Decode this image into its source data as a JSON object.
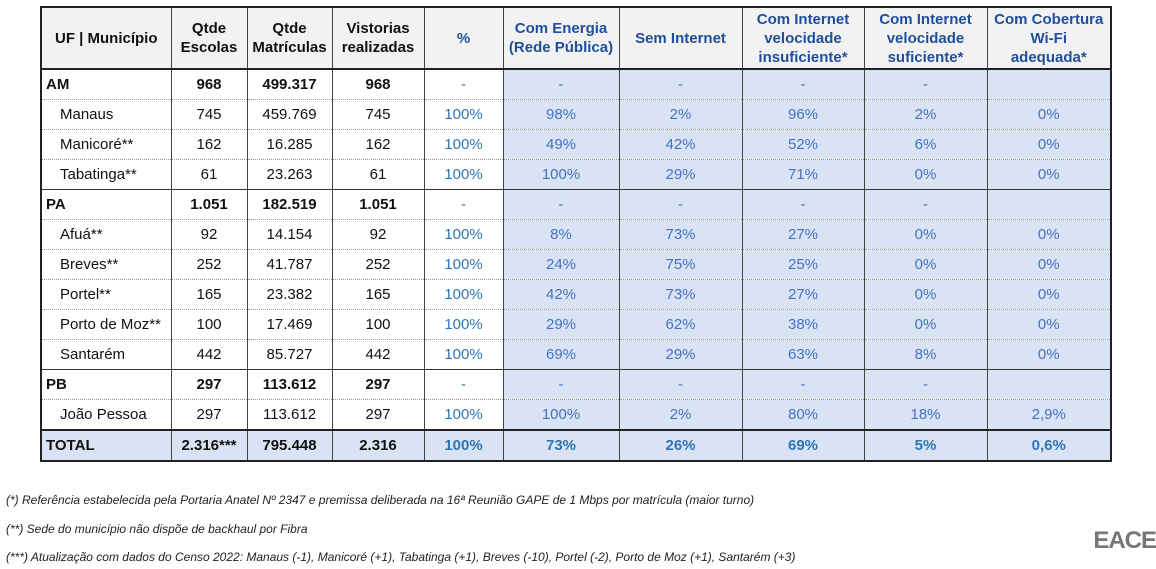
{
  "table": {
    "columns": [
      "UF | Município",
      "Qtde Escolas",
      "Qtde Matrículas",
      "Vistorias realizadas",
      "%",
      "Com Energia (Rede Pública)",
      "Sem Internet",
      "Com Internet velocidade insuficiente*",
      "Com Internet velocidade suficiente*",
      "Com Cobertura Wi-Fi adequada*"
    ],
    "groups": [
      {
        "row": [
          "AM",
          "968",
          "499.317",
          "968",
          "-",
          "-",
          "-",
          "-",
          "-",
          ""
        ],
        "cities": [
          [
            "Manaus",
            "745",
            "459.769",
            "745",
            "100%",
            "98%",
            "2%",
            "96%",
            "2%",
            "0%"
          ],
          [
            "Manicoré**",
            "162",
            "16.285",
            "162",
            "100%",
            "49%",
            "42%",
            "52%",
            "6%",
            "0%"
          ],
          [
            "Tabatinga**",
            "61",
            "23.263",
            "61",
            "100%",
            "100%",
            "29%",
            "71%",
            "0%",
            "0%"
          ]
        ]
      },
      {
        "row": [
          "PA",
          "1.051",
          "182.519",
          "1.051",
          "-",
          "-",
          "-",
          "-",
          "-",
          ""
        ],
        "cities": [
          [
            "Afuá**",
            "92",
            "14.154",
            "92",
            "100%",
            "8%",
            "73%",
            "27%",
            "0%",
            "0%"
          ],
          [
            "Breves**",
            "252",
            "41.787",
            "252",
            "100%",
            "24%",
            "75%",
            "25%",
            "0%",
            "0%"
          ],
          [
            "Portel**",
            "165",
            "23.382",
            "165",
            "100%",
            "42%",
            "73%",
            "27%",
            "0%",
            "0%"
          ],
          [
            "Porto de Moz**",
            "100",
            "17.469",
            "100",
            "100%",
            "29%",
            "62%",
            "38%",
            "0%",
            "0%"
          ],
          [
            "Santarém",
            "442",
            "85.727",
            "442",
            "100%",
            "69%",
            "29%",
            "63%",
            "8%",
            "0%"
          ]
        ]
      },
      {
        "row": [
          "PB",
          "297",
          "113.612",
          "297",
          "-",
          "-",
          "-",
          "-",
          "-",
          ""
        ],
        "cities": [
          [
            "João Pessoa",
            "297",
            "113.612",
            "297",
            "100%",
            "100%",
            "2%",
            "80%",
            "18%",
            "2,9%"
          ]
        ]
      }
    ],
    "total": [
      "TOTAL",
      "2.316***",
      "795.448",
      "2.316",
      "100%",
      "73%",
      "26%",
      "69%",
      "5%",
      "0,6%"
    ]
  },
  "footnotes": [
    "(*) Referência estabelecida pela Portaria Anatel Nº 2347 e premissa deliberada na 16ª Reunião GAPE de 1 Mbps por matrícula (maior turno)",
    "(**) Sede do município não dispõe de backhaul por Fibra",
    "(***) Atualização com dados do Censo 2022: Manaus (-1), Manicoré (+1), Tabatinga (+1), Breves (-10), Portel (-2), Porto de Moz (+1), Santarém (+3)"
  ],
  "logo": "EACE"
}
